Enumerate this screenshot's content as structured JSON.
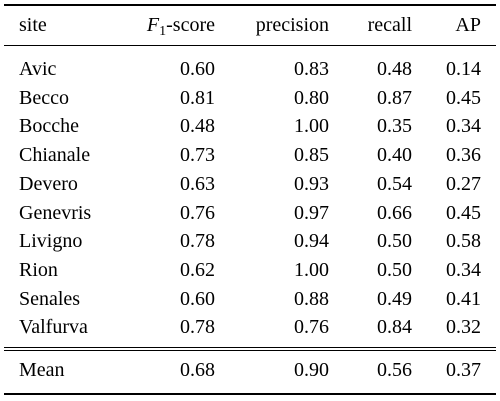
{
  "table": {
    "headers": {
      "site": "site",
      "f1_letter": "F",
      "f1_sub": "1",
      "f1_suffix": "-score",
      "precision": "precision",
      "recall": "recall",
      "ap": "AP"
    },
    "rows": [
      {
        "site": "Avic",
        "f1": "0.60",
        "precision": "0.83",
        "recall": "0.48",
        "ap": "0.14"
      },
      {
        "site": "Becco",
        "f1": "0.81",
        "precision": "0.80",
        "recall": "0.87",
        "ap": "0.45"
      },
      {
        "site": "Bocche",
        "f1": "0.48",
        "precision": "1.00",
        "recall": "0.35",
        "ap": "0.34"
      },
      {
        "site": "Chianale",
        "f1": "0.73",
        "precision": "0.85",
        "recall": "0.40",
        "ap": "0.36"
      },
      {
        "site": "Devero",
        "f1": "0.63",
        "precision": "0.93",
        "recall": "0.54",
        "ap": "0.27"
      },
      {
        "site": "Genevris",
        "f1": "0.76",
        "precision": "0.97",
        "recall": "0.66",
        "ap": "0.45"
      },
      {
        "site": "Livigno",
        "f1": "0.78",
        "precision": "0.94",
        "recall": "0.50",
        "ap": "0.58"
      },
      {
        "site": "Rion",
        "f1": "0.62",
        "precision": "1.00",
        "recall": "0.50",
        "ap": "0.34"
      },
      {
        "site": "Senales",
        "f1": "0.60",
        "precision": "0.88",
        "recall": "0.49",
        "ap": "0.41"
      },
      {
        "site": "Valfurva",
        "f1": "0.78",
        "precision": "0.76",
        "recall": "0.84",
        "ap": "0.32"
      }
    ],
    "mean": {
      "site": "Mean",
      "f1": "0.68",
      "precision": "0.90",
      "recall": "0.56",
      "ap": "0.37"
    }
  }
}
